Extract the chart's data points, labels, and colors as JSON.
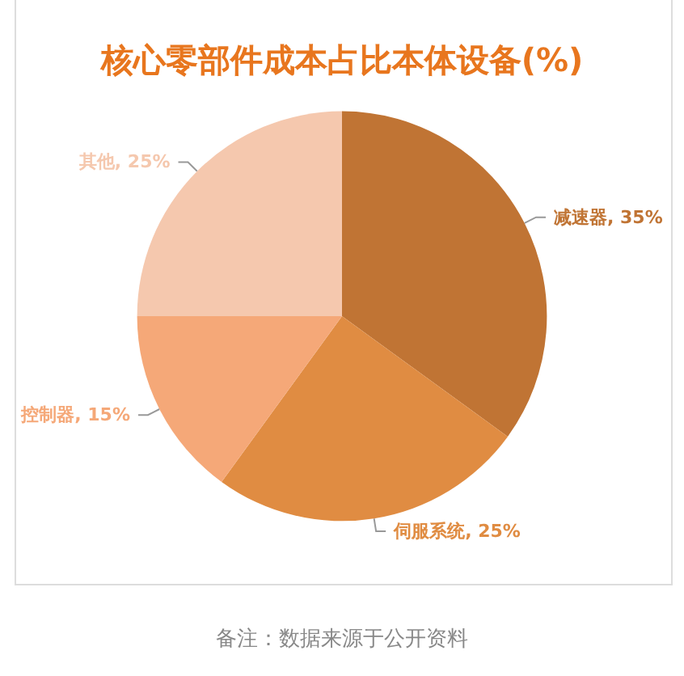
{
  "chart_data": {
    "type": "pie",
    "title": "核心零部件成本占比本体设备(%)",
    "categories": [
      "减速器",
      "伺服系统",
      "控制器",
      "其他"
    ],
    "values": [
      35,
      25,
      15,
      25
    ],
    "value_labels": [
      "35%",
      "25%",
      "15%",
      "25%"
    ],
    "colors": [
      "#c07434",
      "#e08c42",
      "#f5a878",
      "#f5c8ae"
    ],
    "legend": false,
    "annotations": [
      "备注：数据来源于公开资料"
    ]
  }
}
